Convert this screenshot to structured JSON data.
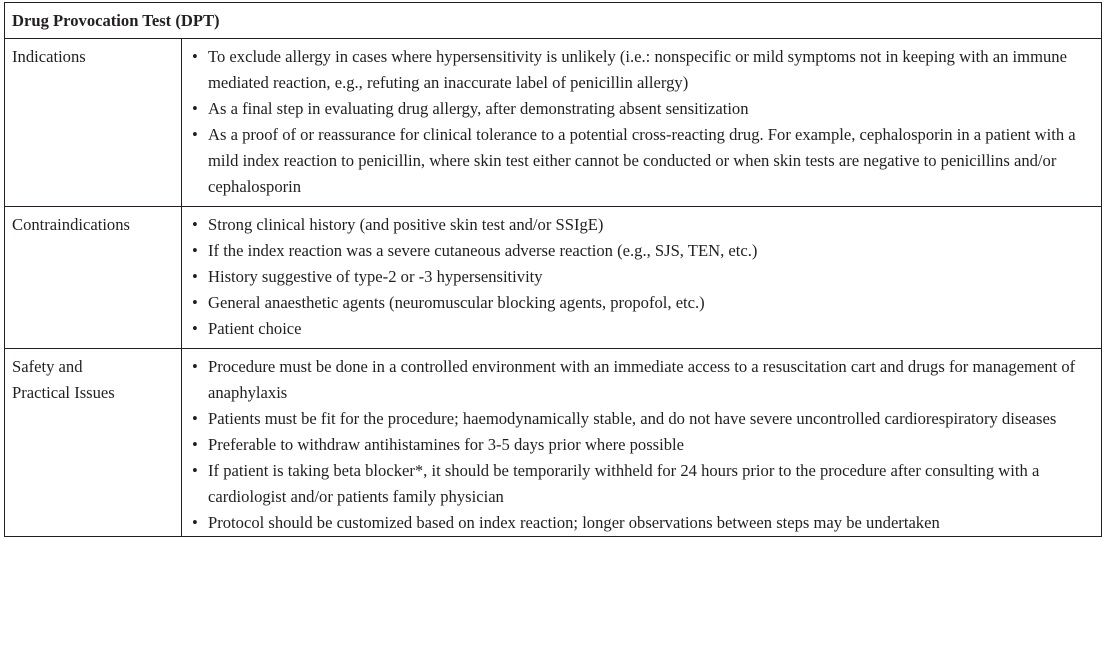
{
  "table": {
    "title": "Drug Provocation Test (DPT)",
    "rows": [
      {
        "label": "Indications",
        "items": [
          "To exclude allergy in cases where hypersensitivity is unlikely (i.e.: nonspecific or mild symptoms not in keeping with an immune mediated reaction, e.g., refuting an inaccurate label of penicillin allergy)",
          "As a final step in evaluating drug allergy, after demonstrating absent sensitization",
          "As a proof of or reassurance for clinical tolerance to a potential cross-reacting drug. For example, cephalosporin in a patient with a mild index reaction to penicillin, where skin test either cannot be conducted or when skin tests are negative to penicillins and/or cephalosporin"
        ]
      },
      {
        "label": "Contraindications",
        "items": [
          "Strong clinical history (and positive skin test and/or SSIgE)",
          "If the index reaction was a severe cutaneous adverse reaction (e.g., SJS, TEN, etc.)",
          "History suggestive of type-2 or -3 hypersensitivity",
          "General anaesthetic agents (neuromuscular blocking agents, propofol, etc.)",
          "Patient choice"
        ]
      },
      {
        "label_line1": "Safety and",
        "label_line2": "Practical Issues",
        "items": [
          "Procedure must be done in a controlled environment with an immediate access to a resuscitation cart and drugs for management of anaphylaxis",
          "Patients must be fit for the procedure; haemodynamically stable, and do not have severe uncontrolled cardiorespiratory diseases",
          "Preferable to withdraw antihistamines for 3-5 days prior where possible",
          "If patient is taking beta blocker*, it should be temporarily withheld for 24 hours prior to the procedure after consulting with a cardiologist and/or patients family physician",
          "Protocol should be customized based on index reaction; longer observations between steps may be undertaken"
        ]
      }
    ]
  }
}
